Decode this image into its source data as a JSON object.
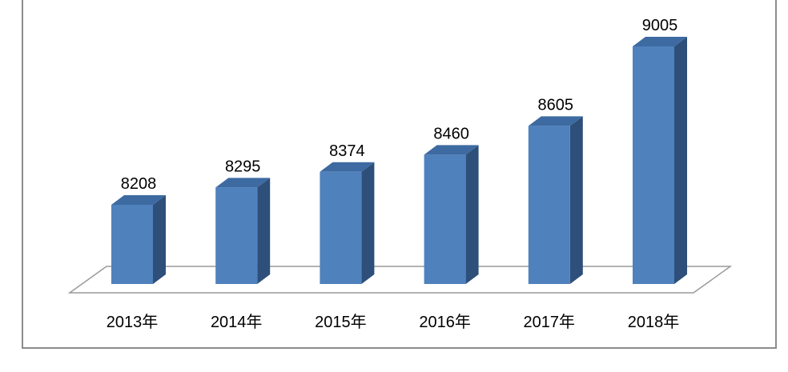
{
  "colors": {
    "bar_front": "#4f81bd",
    "bar_top": "#3d6aa1",
    "bar_side": "#2d4f7a",
    "floor_stroke": "#9a9a9a",
    "frame": "#8c8c8c"
  },
  "chart_data": {
    "type": "bar",
    "style": "3d-column",
    "categories": [
      "2013年",
      "2014年",
      "2015年",
      "2016年",
      "2017年",
      "2018年"
    ],
    "values": [
      8208,
      8295,
      8374,
      8460,
      8605,
      9005
    ],
    "data_labels": [
      "8208",
      "8295",
      "8374",
      "8460",
      "8605",
      "9005"
    ],
    "grid": false,
    "legend": "none",
    "title": "",
    "xlabel": "",
    "ylabel": ""
  }
}
